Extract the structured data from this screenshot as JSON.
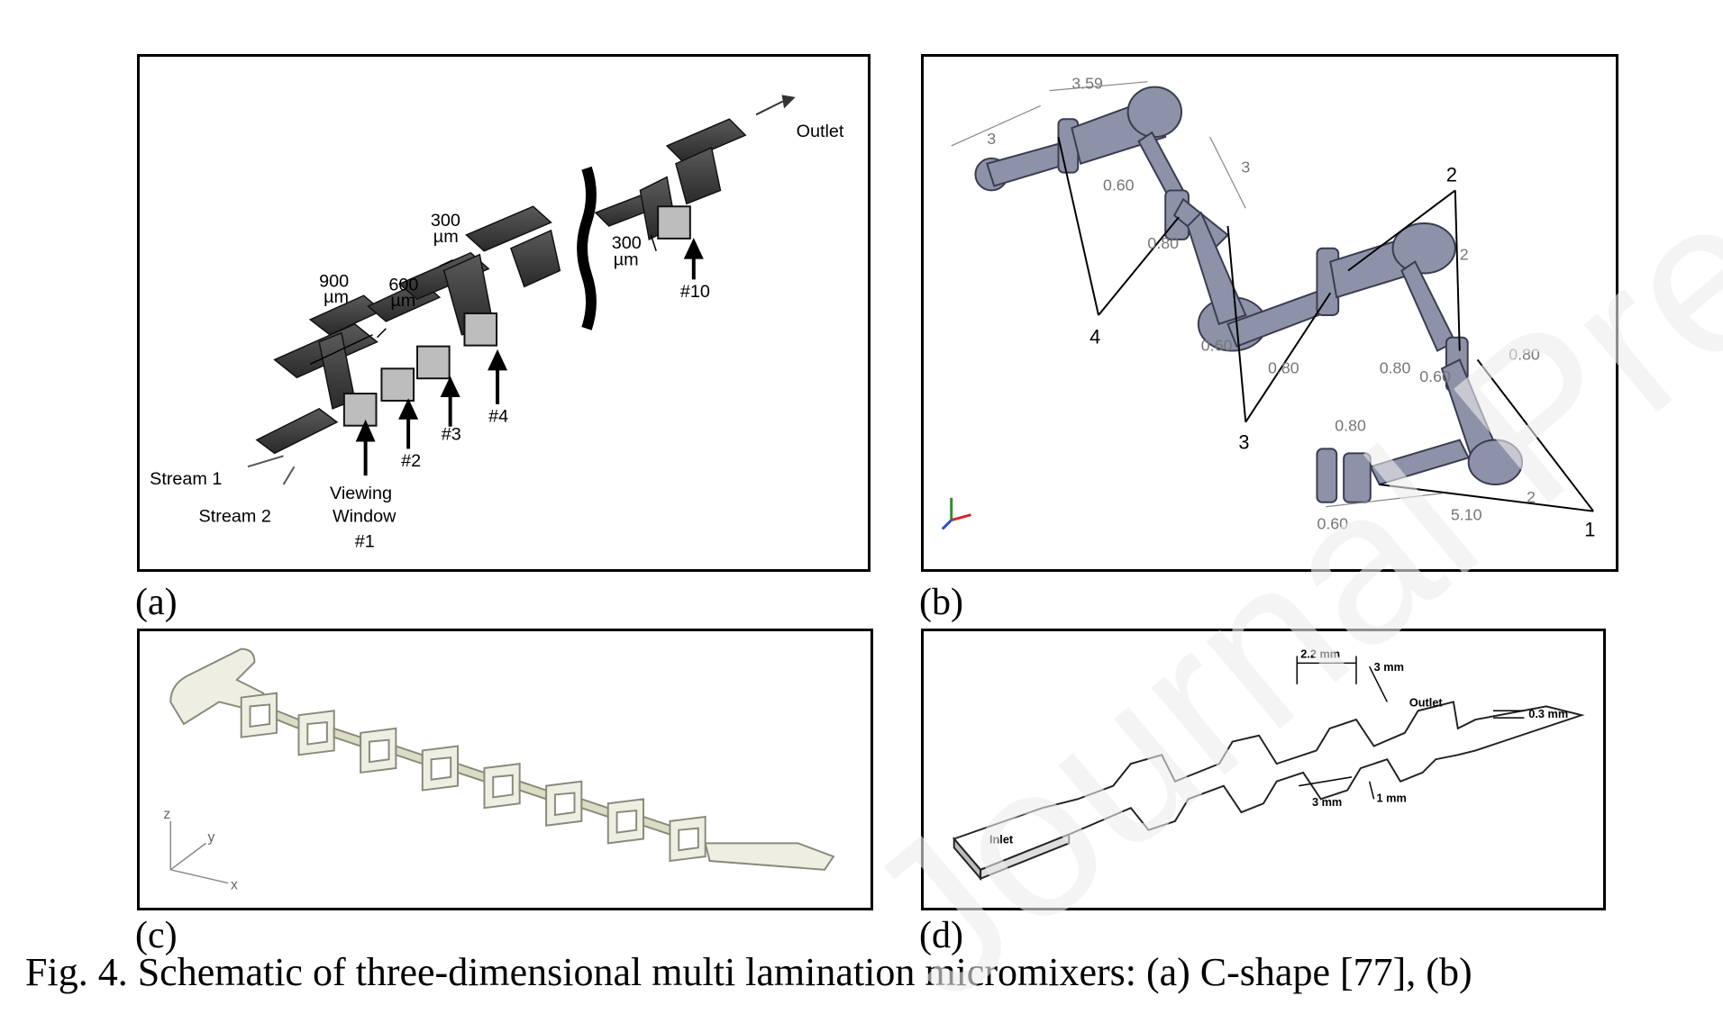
{
  "panels": {
    "a": {
      "label": "(a)",
      "outlet": "Outlet",
      "stream1": "Stream 1",
      "stream2": "Stream 2",
      "viewing1": "Viewing",
      "viewing2": "Window",
      "viewing3": "#1",
      "w2": "#2",
      "w3": "#3",
      "w4": "#4",
      "w10": "#10",
      "d900": "900",
      "d600": "600",
      "d300a": "300",
      "d300b": "300",
      "um": "µm"
    },
    "b": {
      "label": "(b)",
      "dims": [
        "3.59",
        "3",
        "0.60",
        "3",
        "0.80",
        "2",
        "0.60",
        "0.80",
        "0.60",
        "5.10",
        "2",
        "0.80",
        "0.80",
        "0.80",
        "0.60"
      ],
      "callouts": [
        "1",
        "2",
        "3",
        "4"
      ]
    },
    "c": {
      "label": "(c)",
      "axis_z": "z",
      "axis_y": "y",
      "axis_x": "x"
    },
    "d": {
      "label": "(d)",
      "inlet": "Inlet",
      "outlet": "Outlet",
      "d22": "2.2 mm",
      "d3a": "3 mm",
      "d03": "0.3 mm",
      "d1": "1 mm",
      "d3b": "3 mm"
    }
  },
  "caption": "Fig. 4. Schematic of three-dimensional multi lamination micromixers:  (a) C-shape [77], (b)",
  "watermark": "Journal Pre-proof"
}
